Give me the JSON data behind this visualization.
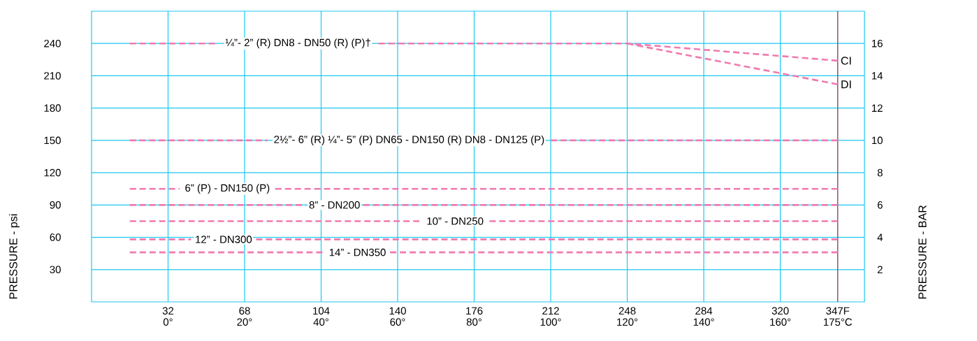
{
  "chart_data": {
    "type": "line",
    "ylabel": "PRESSURE - psi",
    "y2label": "PRESSURE - BAR",
    "xlim": [
      -20,
      182
    ],
    "xticks": [
      {
        "value": 0,
        "label": "0°"
      },
      {
        "value": 20,
        "label": "20°"
      },
      {
        "value": 40,
        "label": "40°"
      },
      {
        "value": 60,
        "label": "60°"
      },
      {
        "value": 80,
        "label": "80°"
      },
      {
        "value": 100,
        "label": "100°"
      },
      {
        "value": 120,
        "label": "120°"
      },
      {
        "value": 140,
        "label": "140°"
      },
      {
        "value": 160,
        "label": "160°"
      },
      {
        "value": 175,
        "label": "175°C"
      }
    ],
    "x2lim": [
      -4,
      359.6
    ],
    "x2ticks": [
      32,
      68,
      104,
      140,
      176,
      212,
      248,
      284,
      320,
      {
        "value": 347,
        "label": "347F"
      }
    ],
    "ylim": [
      0,
      270
    ],
    "yticks": [
      30,
      60,
      90,
      120,
      150,
      180,
      210,
      240
    ],
    "y2lim": [
      0,
      18
    ],
    "y2ticks": [
      2,
      4,
      6,
      8,
      10,
      12,
      14,
      16
    ],
    "grid": true,
    "marker": "none",
    "line_style": "dashed",
    "series": [
      {
        "name": "¼”- 2” (R)   DN8 - DN50 (R) (P)†",
        "color": "#f07aaf",
        "x": [
          -10,
          13,
          34,
          55,
          120,
          175
        ],
        "values": [
          240,
          240,
          null,
          240,
          240,
          224
        ]
      },
      {
        "name": "DI",
        "color": "#f07aaf",
        "x": [
          120,
          175
        ],
        "values": [
          240,
          202
        ]
      },
      {
        "name": "2½”- 6” (R)  ¼”- 5” (P)   DN65 - DN150 (R)   DN8 - DN125 (P)",
        "color": "#f07aaf",
        "x": [
          -10,
          26,
          63,
          100,
          175
        ],
        "values": [
          150,
          150,
          null,
          150,
          150
        ]
      },
      {
        "name": "6” (P) - DN150 (P)",
        "color": "#f07aaf",
        "x": [
          -10,
          3,
          15.5,
          28,
          175
        ],
        "values": [
          105,
          105,
          null,
          105,
          105
        ]
      },
      {
        "name": "8” - DN200",
        "color": "#f07aaf",
        "x": [
          -10,
          36,
          43.5,
          51,
          175
        ],
        "values": [
          90,
          90,
          null,
          90,
          90
        ]
      },
      {
        "name": "10” - DN250",
        "color": "#f07aaf",
        "x": [
          -10,
          66,
          75,
          84,
          175
        ],
        "values": [
          75,
          75,
          null,
          75,
          75
        ]
      },
      {
        "name": "12” - DN300",
        "color": "#f07aaf",
        "x": [
          -10,
          6,
          14.5,
          23,
          175
        ],
        "values": [
          58,
          58,
          null,
          58,
          58
        ]
      },
      {
        "name": "14” - DN350",
        "color": "#f07aaf",
        "x": [
          -10,
          41,
          49.5,
          58,
          175
        ],
        "values": [
          46,
          46,
          null,
          46,
          46
        ]
      }
    ],
    "ref_lines": [
      {
        "axis": "x",
        "value": 175,
        "color": "#e8202a"
      }
    ],
    "annotations": [
      {
        "text": "CI",
        "x": 175,
        "y": 224
      }
    ]
  }
}
